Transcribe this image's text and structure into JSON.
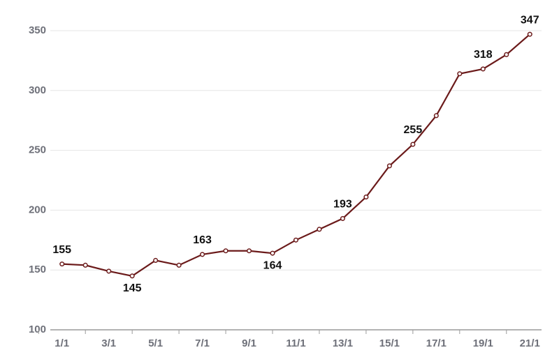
{
  "chart_data": {
    "type": "line",
    "categories": [
      "1/1",
      null,
      "3/1",
      null,
      "5/1",
      null,
      "7/1",
      null,
      "9/1",
      null,
      "11/1",
      null,
      "13/1",
      null,
      "15/1",
      null,
      "17/1",
      null,
      "19/1",
      null,
      "21/1"
    ],
    "series": [
      {
        "color": "#6b1a1a",
        "values": [
          155,
          154,
          149,
          145,
          158,
          154,
          163,
          166,
          166,
          164,
          175,
          184,
          193,
          211,
          237,
          255,
          279,
          314,
          318,
          330,
          347
        ],
        "value_labels": [
          "155",
          null,
          null,
          "145",
          null,
          null,
          "163",
          null,
          null,
          "164",
          null,
          null,
          "193",
          null,
          null,
          "255",
          null,
          null,
          "318",
          null,
          "347"
        ]
      }
    ],
    "ylim": [
      100,
      350
    ],
    "yticks": [
      100,
      150,
      200,
      250,
      300,
      350
    ],
    "grid": true
  }
}
